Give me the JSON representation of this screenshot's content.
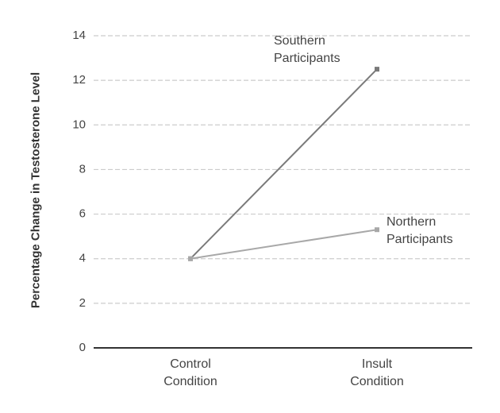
{
  "chart_data": {
    "type": "line",
    "y_label": "Percentage Change in Testosterone Level",
    "categories": [
      "Control Condition",
      "Insult Condition"
    ],
    "series": [
      {
        "name": "Southern Participants",
        "color": "#7a7a7a",
        "values": [
          4,
          12.5
        ]
      },
      {
        "name": "Northern Participants",
        "color": "#a8a8a8",
        "values": [
          4,
          5.3
        ]
      }
    ],
    "ylim": [
      0,
      14
    ],
    "yticks": [
      0,
      2,
      4,
      6,
      8,
      10,
      12,
      14
    ],
    "grid": true
  }
}
